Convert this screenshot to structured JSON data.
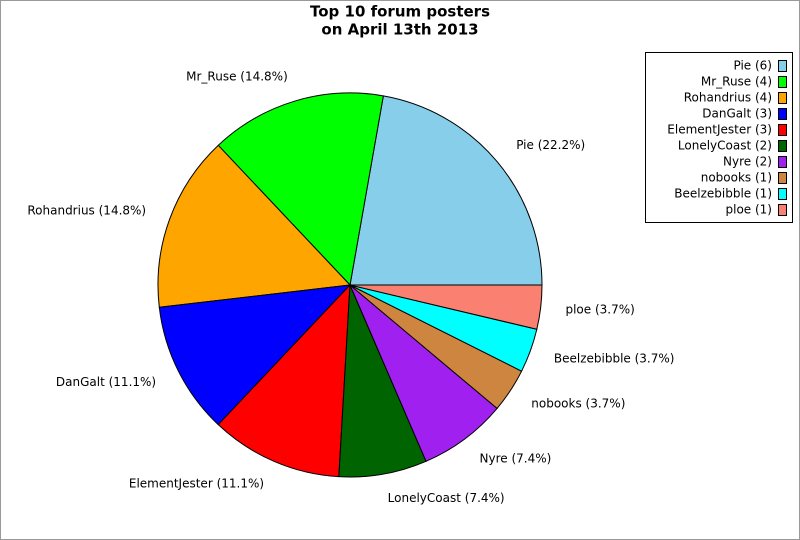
{
  "chart_data": {
    "type": "pie",
    "title": [
      "Top 10 forum posters",
      "on April 13th 2013"
    ],
    "categories": [
      "Pie",
      "Mr_Ruse",
      "Rohandrius",
      "DanGalt",
      "ElementJester",
      "LonelyCoast",
      "Nyre",
      "nobooks",
      "Beelzebibble",
      "ploe"
    ],
    "values": [
      6,
      4,
      4,
      3,
      3,
      2,
      2,
      1,
      1,
      1
    ],
    "value_labels": [
      "Pie (22.2%)",
      "Mr_Ruse (14.8%)",
      "Rohandrius (14.8%)",
      "DanGalt (11.1%)",
      "ElementJester (11.1%)",
      "LonelyCoast (7.4%)",
      "Nyre (7.4%)",
      "nobooks (3.7%)",
      "Beelzebibble (3.7%)",
      "ploe (3.7%)"
    ],
    "legend_labels": [
      "Pie (6)",
      "Mr_Ruse (4)",
      "Rohandrius (4)",
      "DanGalt (3)",
      "ElementJester (3)",
      "LonelyCoast (2)",
      "Nyre (2)",
      "nobooks (1)",
      "Beelzebibble (1)",
      "ploe (1)"
    ],
    "colors": [
      "#87ceeb",
      "#00ff00",
      "#ffa500",
      "#0000ff",
      "#ff0000",
      "#006400",
      "#a020f0",
      "#cd853f",
      "#00ffff",
      "#fa8072"
    ],
    "legend": "upper right"
  }
}
